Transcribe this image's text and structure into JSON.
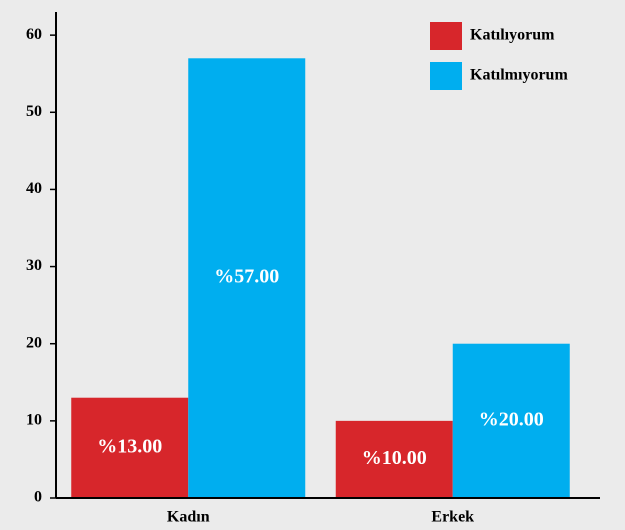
{
  "chart_data": {
    "type": "bar",
    "categories": [
      "Kadın",
      "Erkek"
    ],
    "series": [
      {
        "name": "Katılıyorum",
        "color": "#d7262b",
        "values": [
          13,
          10
        ],
        "value_labels": [
          "%13.00",
          "%10.00"
        ]
      },
      {
        "name": "Katılmıyorum",
        "color": "#00aeef",
        "values": [
          57,
          20
        ],
        "value_labels": [
          "%57.00",
          "%20.00"
        ]
      }
    ],
    "ylim": [
      0,
      63
    ],
    "yticks": [
      0,
      10,
      20,
      30,
      40,
      50,
      60
    ],
    "legend": "upper right"
  }
}
